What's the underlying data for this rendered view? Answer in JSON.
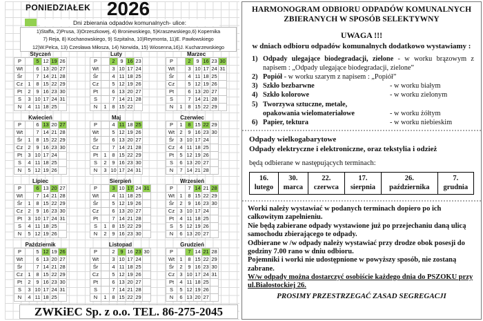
{
  "left": {
    "weekday_header": "PONIEDZIAŁEK",
    "year": "2026",
    "legend_text": "Dni zbierania odpadów komunalnych- ulice:",
    "streets": [
      "1)Staffa, 2)Prusa, 3)Orzeszkowej, 4) Broniewskiego, 5)Kraszewskiego,6) Kopernika",
      "7) Reja, 8) Kochanowskiego, 9) Szpitalna, 10)Reymonta, 11)E. Pawłowskiego",
      "12)W.Pelca, 13) Czesława Miłosza, 14) Norwida, 15) Wiosenna,16)J. Kucharzewskiego"
    ],
    "day_labels": [
      "P",
      "Wt",
      "Śr",
      "Cz",
      "Pt",
      "S",
      "N"
    ],
    "highlight_color": "#92d050",
    "months": [
      {
        "name": "Styczeń",
        "highlight": [
          5,
          19
        ],
        "rows": [
          [
            null,
            5,
            12,
            19,
            26
          ],
          [
            null,
            6,
            13,
            20,
            27
          ],
          [
            null,
            7,
            14,
            21,
            28
          ],
          [
            1,
            8,
            15,
            22,
            29
          ],
          [
            2,
            9,
            16,
            23,
            30
          ],
          [
            3,
            10,
            17,
            24,
            31
          ],
          [
            4,
            11,
            18,
            25,
            null
          ]
        ]
      },
      {
        "name": "Luty",
        "highlight": [
          2,
          16
        ],
        "rows": [
          [
            null,
            2,
            9,
            16,
            23
          ],
          [
            null,
            3,
            10,
            17,
            24
          ],
          [
            null,
            4,
            11,
            18,
            25
          ],
          [
            null,
            5,
            12,
            19,
            26
          ],
          [
            null,
            6,
            13,
            20,
            27
          ],
          [
            null,
            7,
            14,
            21,
            28
          ],
          [
            1,
            8,
            15,
            22,
            null
          ]
        ]
      },
      {
        "name": "Marzec",
        "highlight": [
          2,
          16,
          30
        ],
        "rows": [
          [
            null,
            2,
            9,
            16,
            23,
            30
          ],
          [
            null,
            3,
            10,
            17,
            24,
            31
          ],
          [
            null,
            4,
            11,
            18,
            25,
            null
          ],
          [
            null,
            5,
            12,
            19,
            26,
            null
          ],
          [
            null,
            6,
            13,
            20,
            27,
            null
          ],
          [
            null,
            7,
            14,
            21,
            28,
            null
          ],
          [
            1,
            8,
            15,
            22,
            29,
            null
          ]
        ]
      },
      {
        "name": "Kwiecień",
        "highlight": [
          13,
          27
        ],
        "rows": [
          [
            null,
            6,
            13,
            20,
            27
          ],
          [
            null,
            7,
            14,
            21,
            28
          ],
          [
            1,
            8,
            15,
            22,
            29
          ],
          [
            2,
            9,
            16,
            23,
            30
          ],
          [
            3,
            10,
            17,
            24,
            null
          ],
          [
            4,
            11,
            18,
            25,
            null
          ],
          [
            5,
            12,
            19,
            26,
            null
          ]
        ]
      },
      {
        "name": "Maj",
        "highlight": [
          11,
          25
        ],
        "rows": [
          [
            null,
            4,
            11,
            18,
            25
          ],
          [
            null,
            5,
            12,
            19,
            26
          ],
          [
            null,
            6,
            13,
            20,
            27
          ],
          [
            null,
            7,
            14,
            21,
            28
          ],
          [
            1,
            8,
            15,
            22,
            29
          ],
          [
            2,
            9,
            16,
            23,
            30
          ],
          [
            3,
            10,
            17,
            24,
            31
          ]
        ]
      },
      {
        "name": "Czerwiec",
        "highlight": [
          8,
          22
        ],
        "rows": [
          [
            1,
            8,
            15,
            22,
            29
          ],
          [
            2,
            9,
            16,
            23,
            30
          ],
          [
            3,
            10,
            17,
            24,
            null
          ],
          [
            4,
            11,
            18,
            25,
            null
          ],
          [
            5,
            12,
            19,
            26,
            null
          ],
          [
            6,
            13,
            20,
            27,
            null
          ],
          [
            7,
            14,
            21,
            28,
            null
          ]
        ]
      },
      {
        "name": "Lipiec",
        "highlight": [
          6,
          20
        ],
        "rows": [
          [
            null,
            6,
            13,
            20,
            27
          ],
          [
            null,
            7,
            14,
            21,
            28
          ],
          [
            1,
            8,
            15,
            22,
            29
          ],
          [
            2,
            9,
            16,
            23,
            30
          ],
          [
            3,
            10,
            17,
            24,
            31
          ],
          [
            4,
            11,
            18,
            25,
            null
          ],
          [
            5,
            12,
            19,
            26,
            null
          ]
        ]
      },
      {
        "name": "Sierpień",
        "highlight": [
          3,
          17,
          31
        ],
        "rows": [
          [
            null,
            3,
            10,
            17,
            24,
            31
          ],
          [
            null,
            4,
            11,
            18,
            25,
            null
          ],
          [
            null,
            5,
            12,
            19,
            26,
            null
          ],
          [
            null,
            6,
            13,
            20,
            27,
            null
          ],
          [
            null,
            7,
            14,
            21,
            28,
            null
          ],
          [
            1,
            8,
            15,
            22,
            29,
            null
          ],
          [
            2,
            9,
            16,
            23,
            30,
            null
          ]
        ]
      },
      {
        "name": "Wrzesień",
        "highlight": [
          14,
          28
        ],
        "rows": [
          [
            null,
            7,
            14,
            21,
            28
          ],
          [
            1,
            8,
            15,
            22,
            29
          ],
          [
            2,
            9,
            16,
            23,
            30
          ],
          [
            3,
            10,
            17,
            24,
            null
          ],
          [
            4,
            11,
            18,
            25,
            null
          ],
          [
            5,
            12,
            19,
            26,
            null
          ],
          [
            6,
            13,
            20,
            27,
            null
          ]
        ]
      },
      {
        "name": "Październik",
        "highlight": [
          12,
          26
        ],
        "rows": [
          [
            null,
            5,
            12,
            19,
            26
          ],
          [
            null,
            6,
            13,
            20,
            27
          ],
          [
            null,
            7,
            14,
            21,
            28
          ],
          [
            1,
            8,
            15,
            22,
            29
          ],
          [
            2,
            9,
            16,
            23,
            30
          ],
          [
            3,
            10,
            17,
            24,
            31
          ],
          [
            4,
            11,
            18,
            25,
            null
          ]
        ]
      },
      {
        "name": "Listopad",
        "highlight": [
          9,
          23
        ],
        "rows": [
          [
            null,
            2,
            9,
            16,
            23,
            30
          ],
          [
            null,
            3,
            10,
            17,
            24,
            null
          ],
          [
            null,
            4,
            11,
            18,
            25,
            null
          ],
          [
            null,
            5,
            12,
            19,
            26,
            null
          ],
          [
            null,
            6,
            13,
            20,
            27,
            null
          ],
          [
            null,
            7,
            14,
            21,
            28,
            null
          ],
          [
            1,
            8,
            15,
            22,
            29,
            null
          ]
        ]
      },
      {
        "name": "Grudzień",
        "highlight": [
          7,
          21
        ],
        "rows": [
          [
            null,
            7,
            14,
            21,
            28
          ],
          [
            1,
            8,
            15,
            22,
            29
          ],
          [
            2,
            9,
            16,
            23,
            30
          ],
          [
            3,
            10,
            17,
            24,
            31
          ],
          [
            4,
            11,
            18,
            25,
            null
          ],
          [
            5,
            12,
            19,
            26,
            null
          ],
          [
            6,
            13,
            20,
            27,
            null
          ]
        ]
      }
    ],
    "footer": "ZWKiEC Sp. z o.o. TEL. 86-275-2045"
  },
  "right": {
    "title_line1": "HARMONOGRAM ODBIORU ODPADÓW KOMUNALNYCH",
    "title_line2": "ZBIERANYCH W SPOSÓB SELEKTYWNY",
    "uwaga": "UWAGA !!!",
    "uwaga_sub": "w dniach odbioru odpadów komunalnych dodatkowo wystawiamy :",
    "items": [
      {
        "num": "1)",
        "name": "Odpady ulegające biodegradacji, zielone",
        "desc": " - w worku brązowym z napisem : „Odpady ulegające biodegradacji, zielone”"
      },
      {
        "num": "2)",
        "name": "Popiół",
        "desc": " - w worku szarym z napisem : „Popiół”"
      },
      {
        "num": "3)",
        "name": "Szkło bezbarwne",
        "bag": "- w worku białym"
      },
      {
        "num": "4)",
        "name": "Szkło kolorowe",
        "bag": "- w worku zielonym"
      },
      {
        "num": "5)",
        "name": "Tworzywa sztuczne, metale,",
        "name2": "opakowania wielomateriałowe",
        "bag": "- w worku żółtym"
      },
      {
        "num": "6)",
        "name": "Papier, tektura",
        "bag": "- w worku niebieskim"
      }
    ],
    "bulky_line1": "Odpady wielkogabarytowe",
    "bulky_line2": "Odpady elektryczne i elektroniczne, oraz tekstylia i odzież",
    "terms_intro": "będą odbierane w następujących terminach:",
    "terms": [
      {
        "day": "16.",
        "month": "lutego"
      },
      {
        "day": "30.",
        "month": "marca"
      },
      {
        "day": "22.",
        "month": "czerwca"
      },
      {
        "day": "17.",
        "month": "sierpnia"
      },
      {
        "day": "26.",
        "month": "października"
      },
      {
        "day": "7.",
        "month": "grudnia"
      }
    ],
    "notes": [
      "Worki należy wystawiać w podanych terminach dopiero po ich całkowitym zapełnieniu.",
      "Nie będą zabierane odpady wystawione już po przejechaniu daną ulicą samochodu zbierającego te odpady.",
      "Odbierane w /w odpady należy wystawiać przy drodze obok posesji do godziny 7.00 rano w dniu odbioru.",
      "Pojemniki i worki nie udostępnione w powyższy sposób, nie zostaną zabrane."
    ],
    "underlined_note": "W/w odpady można dostarczyć osobiście każdego dnia do PSZOKU przy ul.Białostockiej 26.",
    "final_note": "PROSIMY PRZESTRZEGAĆ ZASAD SEGREGACJI"
  }
}
